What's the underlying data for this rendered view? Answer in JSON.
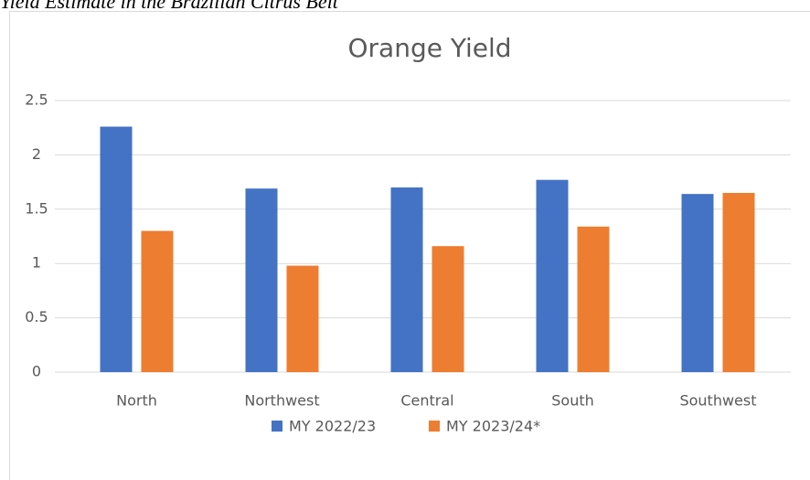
{
  "caption": "Yield Estimate in the Brazilian Citrus Belt",
  "chart_data": {
    "type": "bar",
    "title": "Orange Yield",
    "categories": [
      "North",
      "Northwest",
      "Central",
      "South",
      "Southwest"
    ],
    "series": [
      {
        "name": "MY 2022/23",
        "color": "#4472c4",
        "values": [
          2.26,
          1.69,
          1.7,
          1.77,
          1.64
        ]
      },
      {
        "name": "MY 2023/24*",
        "color": "#ed7d31",
        "values": [
          1.3,
          0.98,
          1.16,
          1.34,
          1.65
        ]
      }
    ],
    "ylim": [
      0,
      2.5
    ],
    "yticks": [
      0,
      0.5,
      1,
      1.5,
      2,
      2.5
    ],
    "grid": true,
    "legend": "bottom"
  }
}
